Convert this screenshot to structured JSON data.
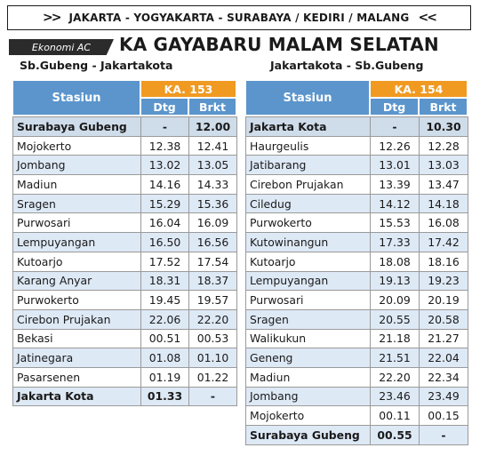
{
  "route": {
    "arrows_left": ">>",
    "text": "JAKARTA - YOGYAKARTA - SURABAYA / KEDIRI / MALANG",
    "arrows_right": "<<"
  },
  "class_label": "Ekonomi AC",
  "train_name": "KA GAYABARU MALAM SELATAN",
  "tables": [
    {
      "direction": "Sb.Gubeng - Jakartakota",
      "station_header": "Stasiun",
      "train_number": "KA. 153",
      "arrive_header": "Dtg",
      "depart_header": "Brkt",
      "rows": [
        {
          "station": "Surabaya Gubeng",
          "dtg": "-",
          "brkt": "12.00"
        },
        {
          "station": "Mojokerto",
          "dtg": "12.38",
          "brkt": "12.41"
        },
        {
          "station": "Jombang",
          "dtg": "13.02",
          "brkt": "13.05"
        },
        {
          "station": "Madiun",
          "dtg": "14.16",
          "brkt": "14.33"
        },
        {
          "station": "Sragen",
          "dtg": "15.29",
          "brkt": "15.36"
        },
        {
          "station": "Purwosari",
          "dtg": "16.04",
          "brkt": "16.09"
        },
        {
          "station": "Lempuyangan",
          "dtg": "16.50",
          "brkt": "16.56"
        },
        {
          "station": "Kutoarjo",
          "dtg": "17.52",
          "brkt": "17.54"
        },
        {
          "station": "Karang Anyar",
          "dtg": "18.31",
          "brkt": "18.37"
        },
        {
          "station": "Purwokerto",
          "dtg": "19.45",
          "brkt": "19.57"
        },
        {
          "station": "Cirebon Prujakan",
          "dtg": "22.06",
          "brkt": "22.20"
        },
        {
          "station": "Bekasi",
          "dtg": "00.51",
          "brkt": "00.53"
        },
        {
          "station": "Jatinegara",
          "dtg": "01.08",
          "brkt": "01.10"
        },
        {
          "station": "Pasarsenen",
          "dtg": "01.19",
          "brkt": "01.22"
        },
        {
          "station": "Jakarta Kota",
          "dtg": "01.33",
          "brkt": "-"
        }
      ]
    },
    {
      "direction": "Jakartakota - Sb.Gubeng",
      "station_header": "Stasiun",
      "train_number": "KA. 154",
      "arrive_header": "Dtg",
      "depart_header": "Brkt",
      "rows": [
        {
          "station": "Jakarta Kota",
          "dtg": "-",
          "brkt": "10.30"
        },
        {
          "station": "Haurgeulis",
          "dtg": "12.26",
          "brkt": "12.28"
        },
        {
          "station": "Jatibarang",
          "dtg": "13.01",
          "brkt": "13.03"
        },
        {
          "station": "Cirebon Prujakan",
          "dtg": "13.39",
          "brkt": "13.47"
        },
        {
          "station": "Ciledug",
          "dtg": "14.12",
          "brkt": "14.18"
        },
        {
          "station": "Purwokerto",
          "dtg": "15.53",
          "brkt": "16.08"
        },
        {
          "station": "Kutowinangun",
          "dtg": "17.33",
          "brkt": "17.42"
        },
        {
          "station": "Kutoarjo",
          "dtg": "18.08",
          "brkt": "18.16"
        },
        {
          "station": "Lempuyangan",
          "dtg": "19.13",
          "brkt": "19.23"
        },
        {
          "station": "Purwosari",
          "dtg": "20.09",
          "brkt": "20.19"
        },
        {
          "station": "Sragen",
          "dtg": "20.55",
          "brkt": "20.58"
        },
        {
          "station": "Walikukun",
          "dtg": "21.18",
          "brkt": "21.27"
        },
        {
          "station": "Geneng",
          "dtg": "21.51",
          "brkt": "22.04"
        },
        {
          "station": "Madiun",
          "dtg": "22.20",
          "brkt": "22.34"
        },
        {
          "station": "Jombang",
          "dtg": "23.46",
          "brkt": "23.49"
        },
        {
          "station": "Mojokerto",
          "dtg": "00.11",
          "brkt": "00.15"
        },
        {
          "station": "Surabaya Gubeng",
          "dtg": "00.55",
          "brkt": "-"
        }
      ]
    }
  ]
}
